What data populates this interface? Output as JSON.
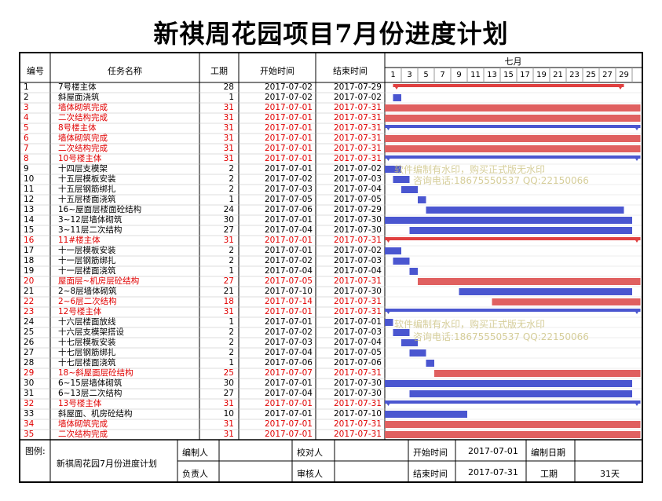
{
  "title": "新祺周花园项目7月份进度计划",
  "headers": {
    "id": "编号",
    "name": "任务名称",
    "duration": "工期",
    "start": "开始时间",
    "end": "结束时间",
    "month": "七月"
  },
  "day_ticks": [
    "1",
    "3",
    "5",
    "7",
    "9",
    "11",
    "13",
    "15",
    "17",
    "19",
    "21",
    "23",
    "25",
    "27",
    "29"
  ],
  "colors": {
    "bar_blue": "#4a56d0",
    "bar_red": "#e06060",
    "text_red": "#e00000"
  },
  "tasks": [
    {
      "id": "1",
      "name": "7号楼主体",
      "duration": "28",
      "start": "2017-07-02",
      "end": "2017-07-29",
      "kind": "summary_red",
      "red": false
    },
    {
      "id": "2",
      "name": "斜屋面浇筑",
      "duration": "1",
      "start": "2017-07-02",
      "end": "2017-07-02",
      "kind": "blue",
      "red": false
    },
    {
      "id": "3",
      "name": "墙体砌筑完成",
      "duration": "31",
      "start": "2017-07-01",
      "end": "2017-07-31",
      "kind": "red",
      "red": true
    },
    {
      "id": "4",
      "name": "二次结构完成",
      "duration": "31",
      "start": "2017-07-01",
      "end": "2017-07-31",
      "kind": "red",
      "red": true
    },
    {
      "id": "5",
      "name": "8号楼主体",
      "duration": "31",
      "start": "2017-07-01",
      "end": "2017-07-31",
      "kind": "summary_blue",
      "red": true
    },
    {
      "id": "6",
      "name": "墙体砌筑完成",
      "duration": "31",
      "start": "2017-07-01",
      "end": "2017-07-31",
      "kind": "red",
      "red": true
    },
    {
      "id": "7",
      "name": "二次结构完成",
      "duration": "31",
      "start": "2017-07-01",
      "end": "2017-07-31",
      "kind": "red",
      "red": true
    },
    {
      "id": "8",
      "name": "10号楼主体",
      "duration": "31",
      "start": "2017-07-01",
      "end": "2017-07-31",
      "kind": "summary_blue",
      "red": true
    },
    {
      "id": "9",
      "name": "十四层支模架",
      "duration": "2",
      "start": "2017-07-01",
      "end": "2017-07-02",
      "kind": "blue",
      "red": false
    },
    {
      "id": "10",
      "name": "十五层模板安装",
      "duration": "2",
      "start": "2017-07-02",
      "end": "2017-07-03",
      "kind": "blue",
      "red": false
    },
    {
      "id": "11",
      "name": "十五层钢筋绑扎",
      "duration": "2",
      "start": "2017-07-03",
      "end": "2017-07-04",
      "kind": "blue",
      "red": false
    },
    {
      "id": "12",
      "name": "十五层楼面浇筑",
      "duration": "1",
      "start": "2017-07-05",
      "end": "2017-07-05",
      "kind": "blue",
      "red": false
    },
    {
      "id": "13",
      "name": "16~屋面层楼面砼结构",
      "duration": "24",
      "start": "2017-07-06",
      "end": "2017-07-29",
      "kind": "blue",
      "red": false
    },
    {
      "id": "14",
      "name": "3~12层墙体砌筑",
      "duration": "30",
      "start": "2017-07-01",
      "end": "2017-07-30",
      "kind": "blue",
      "red": false
    },
    {
      "id": "15",
      "name": "3~11层二次结构",
      "duration": "27",
      "start": "2017-07-04",
      "end": "2017-07-30",
      "kind": "blue",
      "red": false
    },
    {
      "id": "16",
      "name": "11#楼主体",
      "duration": "31",
      "start": "2017-07-01",
      "end": "2017-07-31",
      "kind": "summary_red",
      "red": true
    },
    {
      "id": "17",
      "name": "十一层模板安装",
      "duration": "2",
      "start": "2017-07-01",
      "end": "2017-07-02",
      "kind": "blue",
      "red": false
    },
    {
      "id": "18",
      "name": "十一层钢筋绑扎",
      "duration": "2",
      "start": "2017-07-02",
      "end": "2017-07-03",
      "kind": "blue",
      "red": false
    },
    {
      "id": "19",
      "name": "十一层楼面浇筑",
      "duration": "1",
      "start": "2017-07-04",
      "end": "2017-07-04",
      "kind": "blue",
      "red": false
    },
    {
      "id": "20",
      "name": "屋面层~机房层砼结构",
      "duration": "27",
      "start": "2017-07-05",
      "end": "2017-07-31",
      "kind": "red",
      "red": true
    },
    {
      "id": "21",
      "name": "2~8层墙体砌筑",
      "duration": "21",
      "start": "2017-07-10",
      "end": "2017-07-30",
      "kind": "blue",
      "red": false
    },
    {
      "id": "22",
      "name": "2~6层二次结构",
      "duration": "18",
      "start": "2017-07-14",
      "end": "2017-07-31",
      "kind": "red",
      "red": true
    },
    {
      "id": "23",
      "name": "12号楼主体",
      "duration": "31",
      "start": "2017-07-01",
      "end": "2017-07-31",
      "kind": "summary_blue",
      "red": true
    },
    {
      "id": "24",
      "name": "十六层楼面放线",
      "duration": "1",
      "start": "2017-07-01",
      "end": "2017-07-01",
      "kind": "blue",
      "red": false
    },
    {
      "id": "25",
      "name": "十六层支模架搭设",
      "duration": "2",
      "start": "2017-07-02",
      "end": "2017-07-03",
      "kind": "blue",
      "red": false
    },
    {
      "id": "26",
      "name": "十七层模板安装",
      "duration": "2",
      "start": "2017-07-03",
      "end": "2017-07-04",
      "kind": "blue",
      "red": false
    },
    {
      "id": "27",
      "name": "十七层钢筋绑扎",
      "duration": "2",
      "start": "2017-07-04",
      "end": "2017-07-05",
      "kind": "blue",
      "red": false
    },
    {
      "id": "28",
      "name": "十七层楼面浇筑",
      "duration": "1",
      "start": "2017-07-06",
      "end": "2017-07-06",
      "kind": "blue",
      "red": false
    },
    {
      "id": "29",
      "name": "18~斜屋面层砼结构",
      "duration": "25",
      "start": "2017-07-07",
      "end": "2017-07-31",
      "kind": "red",
      "red": true
    },
    {
      "id": "30",
      "name": "6~15层墙体砌筑",
      "duration": "30",
      "start": "2017-07-01",
      "end": "2017-07-30",
      "kind": "blue",
      "red": false
    },
    {
      "id": "31",
      "name": "6~13层二次结构",
      "duration": "27",
      "start": "2017-07-04",
      "end": "2017-07-30",
      "kind": "blue",
      "red": false
    },
    {
      "id": "32",
      "name": "13号楼主体",
      "duration": "31",
      "start": "2017-07-01",
      "end": "2017-07-31",
      "kind": "summary_blue",
      "red": true
    },
    {
      "id": "33",
      "name": "斜屋面、机房砼结构",
      "duration": "10",
      "start": "2017-07-01",
      "end": "2017-07-10",
      "kind": "blue",
      "red": false
    },
    {
      "id": "34",
      "name": "墙体砌筑完成",
      "duration": "31",
      "start": "2017-07-01",
      "end": "2017-07-31",
      "kind": "red",
      "red": true
    },
    {
      "id": "35",
      "name": "二次结构完成",
      "duration": "31",
      "start": "2017-07-01",
      "end": "2017-07-31",
      "kind": "red",
      "red": true
    }
  ],
  "watermark": {
    "line1": "软件编制有水印，购买正式版无水印",
    "line2": "咨询电话:18675550537 QQ:22150066"
  },
  "footer": {
    "legend_label": "图例:",
    "project_name": "新祺周花园7月份进度计划",
    "prepared_by_label": "编制人",
    "proofread_label": "校对人",
    "start_label": "开始时间",
    "start_value": "2017-07-01",
    "prepare_date_label": "编制日期",
    "responsible_label": "负责人",
    "review_label": "审核人",
    "end_label": "结束时间",
    "end_value": "2017-07-31",
    "duration_label": "工期",
    "duration_value": "31天"
  }
}
